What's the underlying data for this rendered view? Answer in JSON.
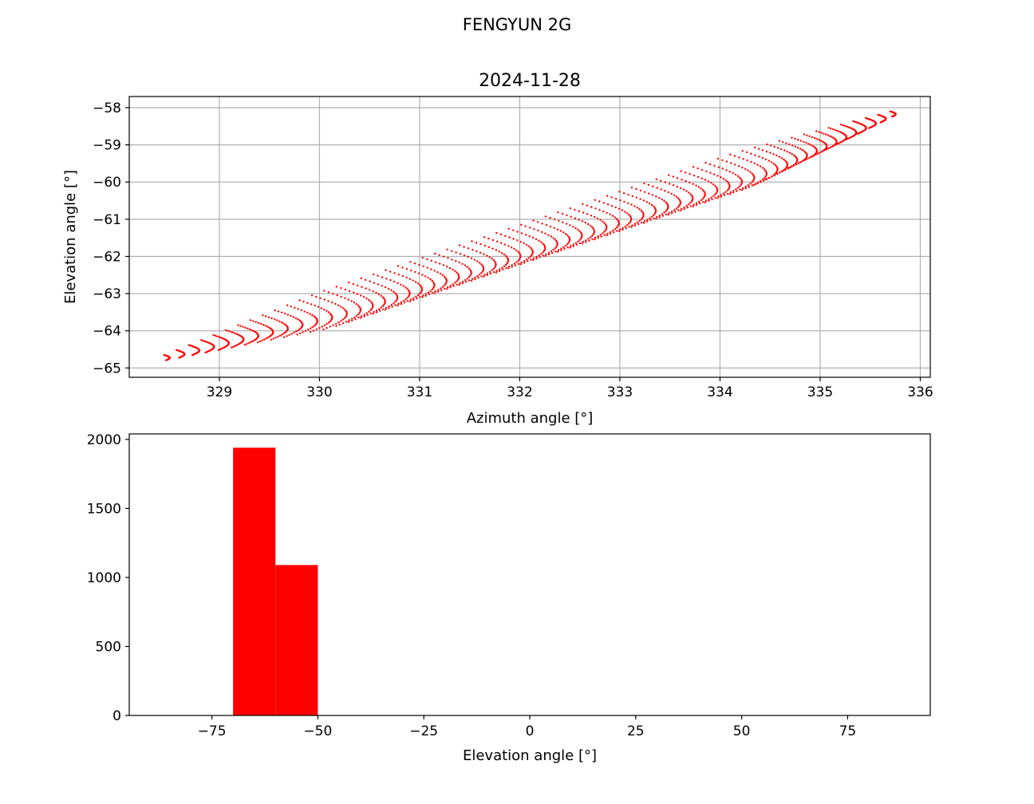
{
  "figure": {
    "suptitle": "FENGYUN 2G"
  },
  "chart_data": [
    {
      "type": "scatter",
      "title": "2024-11-28",
      "xlabel": "Azimuth angle [°]",
      "ylabel": "Elevation angle [°]",
      "xlim": [
        328.1,
        336.1
      ],
      "ylim": [
        -65.25,
        -57.7
      ],
      "xticks": [
        329,
        330,
        331,
        332,
        333,
        334,
        335,
        336
      ],
      "yticks": [
        -65,
        -64,
        -63,
        -62,
        -61,
        -60,
        -59,
        -58
      ],
      "grid": true,
      "marker_color": "#ff0000",
      "series": [
        {
          "shape": "sheared band of short arcs",
          "lower_left_tip": [
            328.45,
            -64.7
          ],
          "upper_right_tip": [
            335.7,
            -58.15
          ],
          "n_arcs": 60,
          "points_per_arc": 25,
          "arc_elevation_drop": 0.95,
          "arc_azimuth_bulge": 0.3
        }
      ]
    },
    {
      "type": "bar",
      "subtype": "histogram",
      "xlabel": "Elevation angle [°]",
      "ylabel": "",
      "xlim": [
        -94.5,
        94.5
      ],
      "ylim": [
        0,
        2040
      ],
      "xticks": [
        -75,
        -50,
        -25,
        0,
        25,
        50,
        75
      ],
      "yticks": [
        0,
        500,
        1000,
        1500,
        2000
      ],
      "grid": false,
      "bar_color": "#ff0000",
      "bins": [
        {
          "x0": -70,
          "x1": -60,
          "count": 1940
        },
        {
          "x0": -60,
          "x1": -50,
          "count": 1090
        }
      ]
    }
  ]
}
